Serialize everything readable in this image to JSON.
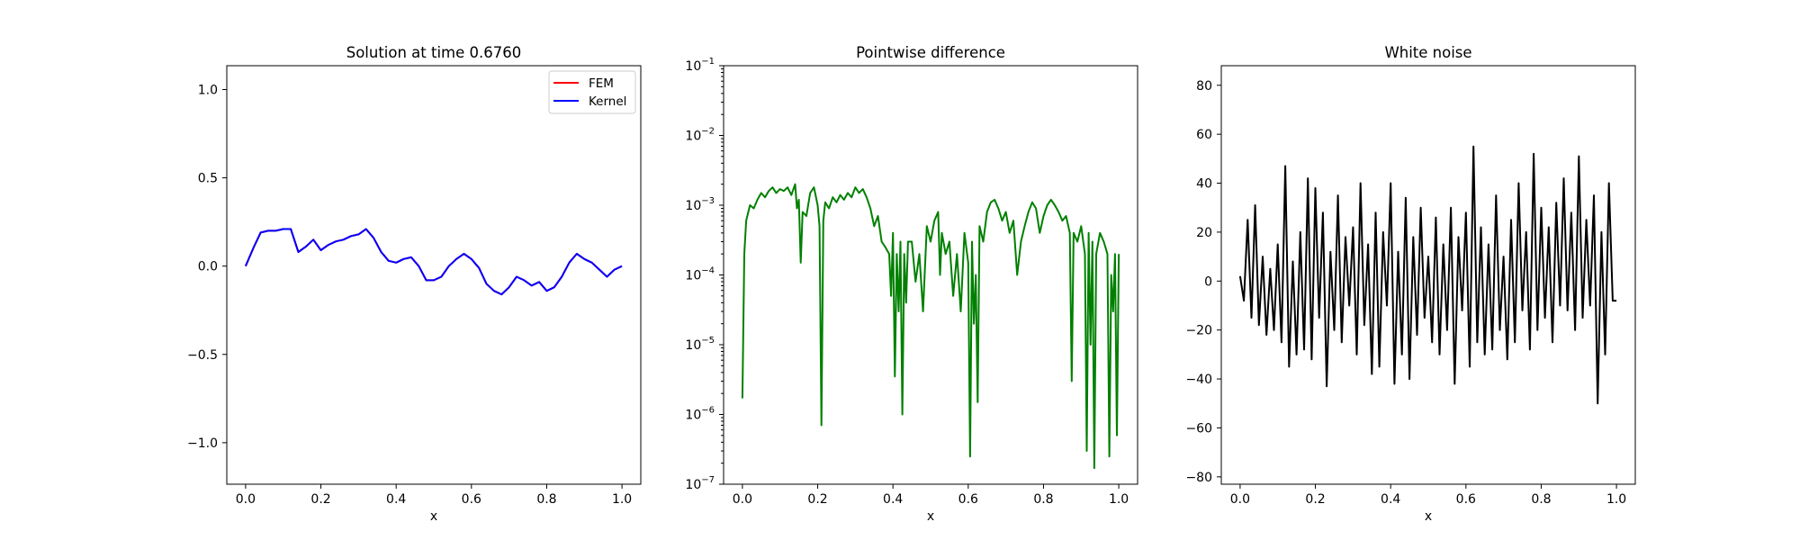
{
  "chart_data": [
    {
      "type": "line",
      "title": "Solution at time 0.6760",
      "xlabel": "x",
      "ylabel": "",
      "xlim": [
        -0.05,
        1.05
      ],
      "ylim": [
        -1.235,
        1.135
      ],
      "y_scale": "linear",
      "x_ticks": [
        0.0,
        0.2,
        0.4,
        0.6,
        0.8,
        1.0
      ],
      "x_tick_labels": [
        "0.0",
        "0.2",
        "0.4",
        "0.6",
        "0.8",
        "1.0"
      ],
      "y_ticks": [
        -1.0,
        -0.5,
        0.0,
        0.5,
        1.0
      ],
      "y_tick_labels": [
        "−1.0",
        "−0.5",
        "0.0",
        "0.5",
        "1.0"
      ],
      "legend": "top-right",
      "grid": false,
      "series": [
        {
          "name": "FEM",
          "color": "#ff0000",
          "x": [
            0.0,
            0.02,
            0.04,
            0.06,
            0.08,
            0.1,
            0.12,
            0.14,
            0.16,
            0.18,
            0.2,
            0.22,
            0.24,
            0.26,
            0.28,
            0.3,
            0.32,
            0.34,
            0.36,
            0.38,
            0.4,
            0.42,
            0.44,
            0.46,
            0.48,
            0.5,
            0.52,
            0.54,
            0.56,
            0.58,
            0.6,
            0.62,
            0.64,
            0.66,
            0.68,
            0.7,
            0.72,
            0.74,
            0.76,
            0.78,
            0.8,
            0.82,
            0.84,
            0.86,
            0.88,
            0.9,
            0.92,
            0.94,
            0.96,
            0.98,
            1.0
          ],
          "y": [
            0.0,
            0.1,
            0.19,
            0.2,
            0.2,
            0.21,
            0.21,
            0.08,
            0.11,
            0.15,
            0.09,
            0.12,
            0.14,
            0.15,
            0.17,
            0.18,
            0.21,
            0.16,
            0.08,
            0.03,
            0.02,
            0.04,
            0.05,
            0.0,
            -0.08,
            -0.08,
            -0.06,
            0.0,
            0.04,
            0.07,
            0.04,
            -0.01,
            -0.1,
            -0.14,
            -0.16,
            -0.12,
            -0.06,
            -0.08,
            -0.11,
            -0.09,
            -0.14,
            -0.12,
            -0.06,
            0.02,
            0.07,
            0.04,
            0.02,
            -0.02,
            -0.06,
            -0.02,
            0.0
          ]
        },
        {
          "name": "Kernel",
          "color": "#0000ff",
          "x": [
            0.0,
            0.02,
            0.04,
            0.06,
            0.08,
            0.1,
            0.12,
            0.14,
            0.16,
            0.18,
            0.2,
            0.22,
            0.24,
            0.26,
            0.28,
            0.3,
            0.32,
            0.34,
            0.36,
            0.38,
            0.4,
            0.42,
            0.44,
            0.46,
            0.48,
            0.5,
            0.52,
            0.54,
            0.56,
            0.58,
            0.6,
            0.62,
            0.64,
            0.66,
            0.68,
            0.7,
            0.72,
            0.74,
            0.76,
            0.78,
            0.8,
            0.82,
            0.84,
            0.86,
            0.88,
            0.9,
            0.92,
            0.94,
            0.96,
            0.98,
            1.0
          ],
          "y": [
            0.0,
            0.1,
            0.19,
            0.2,
            0.2,
            0.21,
            0.21,
            0.08,
            0.11,
            0.15,
            0.09,
            0.12,
            0.14,
            0.15,
            0.17,
            0.18,
            0.21,
            0.16,
            0.08,
            0.03,
            0.02,
            0.04,
            0.05,
            0.0,
            -0.08,
            -0.08,
            -0.06,
            0.0,
            0.04,
            0.07,
            0.04,
            -0.01,
            -0.1,
            -0.14,
            -0.16,
            -0.12,
            -0.06,
            -0.08,
            -0.11,
            -0.09,
            -0.14,
            -0.12,
            -0.06,
            0.02,
            0.07,
            0.04,
            0.02,
            -0.02,
            -0.06,
            -0.02,
            0.0
          ]
        }
      ]
    },
    {
      "type": "line",
      "title": "Pointwise difference",
      "xlabel": "x",
      "ylabel": "",
      "xlim": [
        -0.05,
        1.05
      ],
      "ylim": [
        1e-07,
        0.1
      ],
      "y_scale": "log",
      "x_ticks": [
        0.0,
        0.2,
        0.4,
        0.6,
        0.8,
        1.0
      ],
      "x_tick_labels": [
        "0.0",
        "0.2",
        "0.4",
        "0.6",
        "0.8",
        "1.0"
      ],
      "y_ticks": [
        1e-07,
        1e-06,
        1e-05,
        0.0001,
        0.001,
        0.01,
        0.1
      ],
      "y_tick_labels": [
        "10",
        "10",
        "10",
        "10",
        "10",
        "10",
        "10"
      ],
      "y_tick_exponents": [
        "−7",
        "−6",
        "−5",
        "−4",
        "−3",
        "−2",
        "−1"
      ],
      "grid": false,
      "series": [
        {
          "color": "#008000",
          "x": [
            0.0,
            0.005,
            0.01,
            0.02,
            0.03,
            0.04,
            0.05,
            0.06,
            0.07,
            0.08,
            0.09,
            0.1,
            0.11,
            0.12,
            0.13,
            0.14,
            0.145,
            0.15,
            0.155,
            0.16,
            0.17,
            0.18,
            0.19,
            0.2,
            0.205,
            0.21,
            0.215,
            0.22,
            0.23,
            0.24,
            0.25,
            0.26,
            0.27,
            0.28,
            0.29,
            0.3,
            0.31,
            0.32,
            0.33,
            0.34,
            0.35,
            0.36,
            0.37,
            0.38,
            0.39,
            0.395,
            0.4,
            0.405,
            0.41,
            0.415,
            0.42,
            0.425,
            0.43,
            0.435,
            0.44,
            0.45,
            0.46,
            0.47,
            0.48,
            0.49,
            0.5,
            0.51,
            0.52,
            0.525,
            0.53,
            0.54,
            0.55,
            0.56,
            0.57,
            0.58,
            0.59,
            0.6,
            0.605,
            0.61,
            0.615,
            0.62,
            0.625,
            0.63,
            0.64,
            0.65,
            0.66,
            0.67,
            0.68,
            0.69,
            0.7,
            0.71,
            0.72,
            0.73,
            0.74,
            0.75,
            0.76,
            0.77,
            0.78,
            0.79,
            0.8,
            0.81,
            0.82,
            0.83,
            0.84,
            0.85,
            0.86,
            0.87,
            0.875,
            0.88,
            0.89,
            0.9,
            0.91,
            0.915,
            0.92,
            0.925,
            0.93,
            0.935,
            0.94,
            0.95,
            0.96,
            0.97,
            0.975,
            0.98,
            0.985,
            0.99,
            0.995,
            1.0
          ],
          "y": [
            1.7e-06,
            0.0002,
            0.0006,
            0.001,
            0.0009,
            0.0012,
            0.0015,
            0.0013,
            0.0016,
            0.0018,
            0.0015,
            0.0017,
            0.0016,
            0.0018,
            0.0014,
            0.002,
            0.0009,
            0.0012,
            0.00015,
            0.0008,
            0.0007,
            0.0015,
            0.0018,
            0.001,
            0.0005,
            7e-07,
            0.0006,
            0.0011,
            0.0009,
            0.0013,
            0.0011,
            0.0014,
            0.0012,
            0.0015,
            0.0013,
            0.0018,
            0.0015,
            0.0017,
            0.0013,
            0.0009,
            0.0005,
            0.0007,
            0.0003,
            0.00025,
            0.0002,
            5e-05,
            0.0004,
            3.5e-06,
            0.0002,
            3e-05,
            0.0003,
            1e-06,
            0.0002,
            4e-05,
            0.0003,
            0.0003,
            8e-05,
            0.0002,
            3e-05,
            0.0005,
            0.0003,
            0.0006,
            0.0008,
            0.0001,
            0.0004,
            0.0002,
            0.0003,
            5e-05,
            0.0002,
            3e-05,
            0.0004,
            0.00015,
            2.5e-07,
            0.0003,
            2e-05,
            0.0001,
            1.5e-06,
            0.0005,
            0.0003,
            0.0008,
            0.0011,
            0.0012,
            0.0009,
            0.0006,
            0.0008,
            0.0004,
            0.0006,
            0.0001,
            0.0003,
            0.0005,
            0.0008,
            0.0011,
            0.0009,
            0.0004,
            0.0007,
            0.001,
            0.0012,
            0.001,
            0.0008,
            0.0006,
            0.0007,
            0.0004,
            3e-06,
            0.0004,
            0.0003,
            0.0005,
            0.0002,
            3e-07,
            0.0004,
            1e-05,
            0.0003,
            1.7e-07,
            0.0002,
            0.0004,
            0.0003,
            0.0002,
            2.5e-07,
            0.0001,
            3e-05,
            0.0002,
            5e-07,
            0.0002
          ]
        }
      ]
    },
    {
      "type": "line",
      "title": "White noise",
      "xlabel": "x",
      "ylabel": "",
      "xlim": [
        -0.05,
        1.05
      ],
      "ylim": [
        -83,
        88
      ],
      "y_scale": "linear",
      "x_ticks": [
        0.0,
        0.2,
        0.4,
        0.6,
        0.8,
        1.0
      ],
      "x_tick_labels": [
        "0.0",
        "0.2",
        "0.4",
        "0.6",
        "0.8",
        "1.0"
      ],
      "y_ticks": [
        -80,
        -60,
        -40,
        -20,
        0,
        20,
        40,
        60,
        80
      ],
      "y_tick_labels": [
        "−80",
        "−60",
        "−40",
        "−20",
        "0",
        "20",
        "40",
        "60",
        "80"
      ],
      "grid": false,
      "series": [
        {
          "color": "#000000",
          "x": [
            0.0,
            0.01,
            0.02,
            0.03,
            0.04,
            0.05,
            0.06,
            0.07,
            0.08,
            0.09,
            0.1,
            0.11,
            0.12,
            0.13,
            0.14,
            0.15,
            0.16,
            0.17,
            0.18,
            0.19,
            0.2,
            0.21,
            0.22,
            0.23,
            0.24,
            0.25,
            0.26,
            0.27,
            0.28,
            0.29,
            0.3,
            0.31,
            0.32,
            0.33,
            0.34,
            0.35,
            0.36,
            0.37,
            0.38,
            0.39,
            0.4,
            0.41,
            0.42,
            0.43,
            0.44,
            0.45,
            0.46,
            0.47,
            0.48,
            0.49,
            0.5,
            0.51,
            0.52,
            0.53,
            0.54,
            0.55,
            0.56,
            0.57,
            0.58,
            0.59,
            0.6,
            0.61,
            0.62,
            0.63,
            0.64,
            0.65,
            0.66,
            0.67,
            0.68,
            0.69,
            0.7,
            0.71,
            0.72,
            0.73,
            0.74,
            0.75,
            0.76,
            0.77,
            0.78,
            0.79,
            0.8,
            0.81,
            0.82,
            0.83,
            0.84,
            0.85,
            0.86,
            0.87,
            0.88,
            0.89,
            0.9,
            0.91,
            0.92,
            0.93,
            0.94,
            0.95,
            0.96,
            0.97,
            0.98,
            0.99,
            1.0
          ],
          "y": [
            2,
            -8,
            25,
            -15,
            31,
            -18,
            10,
            -22,
            5,
            -20,
            15,
            -25,
            47,
            -35,
            8,
            -30,
            20,
            -28,
            42,
            -32,
            38,
            -15,
            28,
            -43,
            12,
            -20,
            35,
            -25,
            18,
            -10,
            22,
            -30,
            40,
            -18,
            15,
            -38,
            28,
            -35,
            20,
            -10,
            40,
            -42,
            12,
            -30,
            34,
            -40,
            18,
            -22,
            30,
            -15,
            10,
            -25,
            26,
            -30,
            15,
            -20,
            30,
            -42,
            18,
            -12,
            28,
            -35,
            55,
            -25,
            22,
            -30,
            15,
            -28,
            35,
            -20,
            10,
            -32,
            25,
            -25,
            40,
            -12,
            20,
            -28,
            52,
            -20,
            30,
            -15,
            22,
            -25,
            32,
            -10,
            42,
            -12,
            28,
            -20,
            51,
            -15,
            25,
            -10,
            35,
            -50,
            20,
            -30,
            40,
            -8,
            -8
          ]
        }
      ]
    }
  ]
}
